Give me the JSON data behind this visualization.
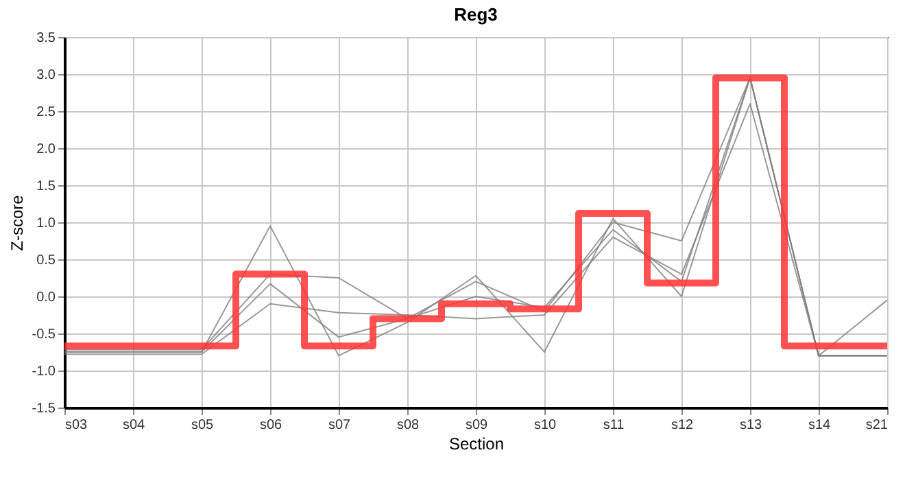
{
  "chart_data": {
    "type": "line",
    "title": "Reg3",
    "xlabel": "Section",
    "ylabel": "Z-score",
    "categories": [
      "s03",
      "s04",
      "s05",
      "s06",
      "s07",
      "s08",
      "s09",
      "s10",
      "s11",
      "s12",
      "s13",
      "s14",
      "s21"
    ],
    "series": [
      {
        "color": "#808080",
        "values": [
          -0.75,
          -0.75,
          -0.75,
          0.95,
          -0.8,
          -0.35,
          0.28,
          -0.75,
          1.05,
          0.0,
          2.95,
          -0.8,
          -0.05
        ]
      },
      {
        "color": "#808080",
        "values": [
          -0.72,
          -0.72,
          -0.72,
          0.3,
          0.25,
          -0.3,
          0.2,
          -0.2,
          1.0,
          0.75,
          2.95,
          -0.8,
          -0.8
        ]
      },
      {
        "color": "#808080",
        "values": [
          -0.75,
          -0.75,
          -0.75,
          0.17,
          -0.55,
          -0.3,
          0.0,
          -0.15,
          0.9,
          0.2,
          2.95,
          -0.8,
          -0.8
        ]
      },
      {
        "color": "#808080",
        "values": [
          -0.78,
          -0.78,
          -0.78,
          -0.1,
          -0.22,
          -0.25,
          -0.3,
          -0.25,
          0.8,
          0.3,
          2.6,
          -0.8,
          -0.8
        ]
      },
      {
        "type": "step",
        "color": "#ff3333",
        "values": [
          -0.67,
          -0.67,
          -0.67,
          0.3,
          -0.67,
          -0.3,
          -0.1,
          -0.17,
          1.12,
          0.18,
          2.95,
          -0.67,
          -0.67
        ]
      }
    ],
    "ylim": [
      -1.5,
      3.5
    ],
    "yticks": [
      {
        "value": -1.5,
        "label": "-1.5"
      },
      {
        "value": -1,
        "label": "-1.0"
      },
      {
        "value": -0.5,
        "label": "-0.5"
      },
      {
        "value": 0,
        "label": "0.0"
      },
      {
        "value": 0.5,
        "label": "0.5"
      },
      {
        "value": 1,
        "label": "1.0"
      },
      {
        "value": 1.5,
        "label": "1.5"
      },
      {
        "value": 2,
        "label": "2.0"
      },
      {
        "value": 2.5,
        "label": "2.5"
      },
      {
        "value": 3,
        "label": "3.0"
      },
      {
        "value": 3.5,
        "label": "3.5"
      }
    ],
    "grid": true,
    "marker": "none",
    "line_style": "solid"
  }
}
